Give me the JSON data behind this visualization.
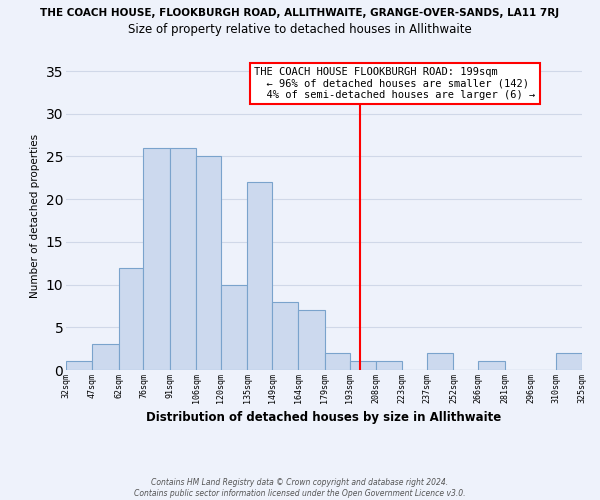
{
  "title_top": "THE COACH HOUSE, FLOOKBURGH ROAD, ALLITHWAITE, GRANGE-OVER-SANDS, LA11 7RJ",
  "title_main": "Size of property relative to detached houses in Allithwaite",
  "xlabel": "Distribution of detached houses by size in Allithwaite",
  "ylabel": "Number of detached properties",
  "bin_labels": [
    "32sqm",
    "47sqm",
    "62sqm",
    "76sqm",
    "91sqm",
    "106sqm",
    "120sqm",
    "135sqm",
    "149sqm",
    "164sqm",
    "179sqm",
    "193sqm",
    "208sqm",
    "223sqm",
    "237sqm",
    "252sqm",
    "266sqm",
    "281sqm",
    "296sqm",
    "310sqm",
    "325sqm"
  ],
  "bin_edges": [
    32,
    47,
    62,
    76,
    91,
    106,
    120,
    135,
    149,
    164,
    179,
    193,
    208,
    223,
    237,
    252,
    266,
    281,
    296,
    310,
    325
  ],
  "bar_heights": [
    1,
    3,
    12,
    26,
    26,
    25,
    10,
    22,
    8,
    7,
    2,
    1,
    1,
    0,
    2,
    0,
    1,
    0,
    0,
    2
  ],
  "bar_color": "#ccd9ee",
  "bar_edge_color": "#7aa3cc",
  "vline_x": 199,
  "vline_color": "red",
  "ylim": [
    0,
    36
  ],
  "yticks": [
    0,
    5,
    10,
    15,
    20,
    25,
    30,
    35
  ],
  "annotation_title": "THE COACH HOUSE FLOOKBURGH ROAD: 199sqm",
  "annotation_line1": "← 96% of detached houses are smaller (142)",
  "annotation_line2": "4% of semi-detached houses are larger (6) →",
  "annotation_box_color": "#ffffff",
  "annotation_box_edge": "red",
  "footer_line1": "Contains HM Land Registry data © Crown copyright and database right 2024.",
  "footer_line2": "Contains public sector information licensed under the Open Government Licence v3.0.",
  "background_color": "#eef2fb",
  "grid_color": "#d0d8e8"
}
